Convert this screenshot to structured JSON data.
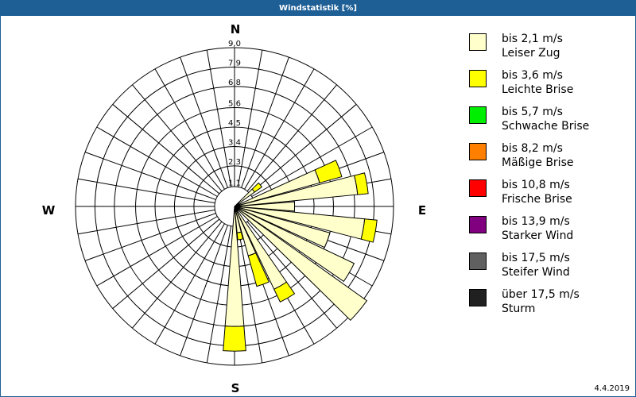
{
  "window": {
    "title": "Windstatistik [%]",
    "date": "4.4.2019"
  },
  "compass": {
    "N": "N",
    "E": "E",
    "S": "S",
    "W": "W"
  },
  "legend": [
    {
      "range": "bis 2,1 m/s",
      "name": "Leiser Zug",
      "color": "#ffffcc"
    },
    {
      "range": "bis 3,6 m/s",
      "name": "Leichte Brise",
      "color": "#ffff00"
    },
    {
      "range": "bis 5,7 m/s",
      "name": "Schwache Brise",
      "color": "#00ee00"
    },
    {
      "range": "bis 8,2 m/s",
      "name": "Mäßige Brise",
      "color": "#ff8000"
    },
    {
      "range": "bis 10,8 m/s",
      "name": "Frische Brise",
      "color": "#ff0000"
    },
    {
      "range": "bis 13,9 m/s",
      "name": "Starker Wind",
      "color": "#800080"
    },
    {
      "range": "bis 17,5 m/s",
      "name": "Steifer Wind",
      "color": "#606060"
    },
    {
      "range": "über 17,5 m/s",
      "name": "Sturm",
      "color": "#202020"
    }
  ],
  "chart_data": {
    "type": "windrose",
    "title": "Windstatistik [%]",
    "unit": "%",
    "rings": [
      "1,1",
      "2,3",
      "3,4",
      "4,5",
      "5,6",
      "6,8",
      "7,9",
      "9,0"
    ],
    "ring_values": [
      1.1,
      2.3,
      3.4,
      4.5,
      5.6,
      6.8,
      7.9,
      9.0
    ],
    "rmax": 9.0,
    "sector_width_deg": 10,
    "series_names": [
      "bis 2,1 m/s",
      "bis 3,6 m/s"
    ],
    "sectors": [
      {
        "dir": 50,
        "values": [
          1.4,
          0.5
        ]
      },
      {
        "dir": 60,
        "values": [
          0.3,
          0.0
        ]
      },
      {
        "dir": 70,
        "values": [
          5.0,
          1.3
        ]
      },
      {
        "dir": 80,
        "values": [
          7.0,
          0.6
        ]
      },
      {
        "dir": 90,
        "values": [
          3.4,
          0.0
        ]
      },
      {
        "dir": 100,
        "values": [
          7.4,
          0.7
        ]
      },
      {
        "dir": 110,
        "values": [
          5.6,
          0.0
        ]
      },
      {
        "dir": 120,
        "values": [
          7.5,
          0.0
        ]
      },
      {
        "dir": 130,
        "values": [
          9.2,
          0.0
        ]
      },
      {
        "dir": 140,
        "values": [
          0.3,
          0.0
        ]
      },
      {
        "dir": 150,
        "values": [
          5.2,
          0.8
        ]
      },
      {
        "dir": 160,
        "values": [
          2.9,
          1.8
        ]
      },
      {
        "dir": 170,
        "values": [
          1.5,
          0.4
        ]
      },
      {
        "dir": 180,
        "values": [
          6.8,
          1.4
        ]
      }
    ]
  }
}
